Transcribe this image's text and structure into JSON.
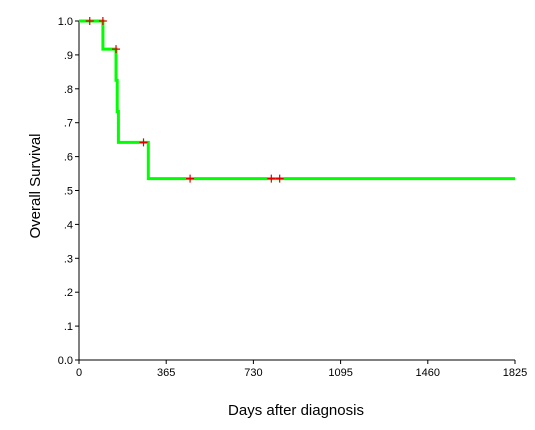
{
  "chart_data": {
    "type": "line",
    "xlabel": "Days after diagnosis",
    "ylabel": "Overall Survival",
    "xlim": [
      0,
      1825
    ],
    "ylim": [
      0,
      1
    ],
    "x_ticks": [
      0,
      365,
      730,
      1095,
      1460,
      1825
    ],
    "x_tick_labels": [
      "0",
      "365",
      "730",
      "1095",
      "1460",
      "1825"
    ],
    "y_ticks": [
      0,
      0.1,
      0.2,
      0.3,
      0.4,
      0.5,
      0.6,
      0.7,
      0.8,
      0.9,
      1.0
    ],
    "y_tick_labels": [
      "0.0",
      ".1",
      ".2",
      ".3",
      ".4",
      ".5",
      ".6",
      ".7",
      ".8",
      ".9",
      "1.0"
    ],
    "grid": false,
    "legend": "none",
    "series": [
      {
        "step_points": [
          [
            0,
            1.0
          ],
          [
            100,
            1.0
          ],
          [
            100,
            0.917
          ],
          [
            155,
            0.917
          ],
          [
            155,
            0.825
          ],
          [
            160,
            0.825
          ],
          [
            160,
            0.733
          ],
          [
            165,
            0.733
          ],
          [
            165,
            0.642
          ],
          [
            290,
            0.642
          ],
          [
            290,
            0.535
          ],
          [
            1825,
            0.535
          ]
        ],
        "censored": [
          [
            45,
            1.0
          ],
          [
            100,
            1.0
          ],
          [
            155,
            0.917
          ],
          [
            270,
            0.642
          ],
          [
            465,
            0.535
          ],
          [
            805,
            0.535
          ],
          [
            840,
            0.535
          ]
        ],
        "line_color": "#00ff00",
        "censor_color": "#e00000"
      }
    ]
  }
}
